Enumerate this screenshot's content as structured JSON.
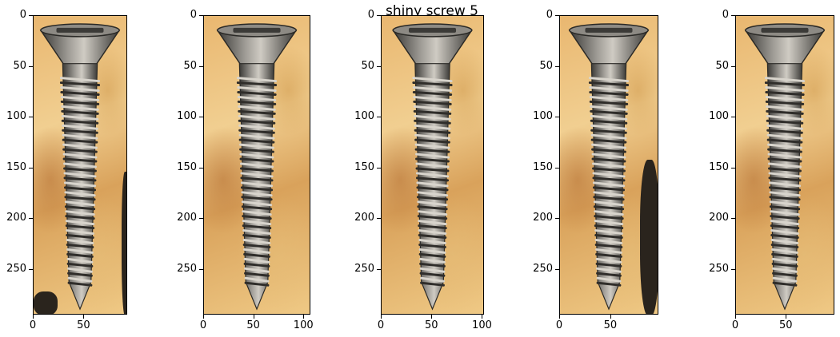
{
  "figure": {
    "title": "shiny screw 5"
  },
  "panels": [
    {
      "id": "panel-1",
      "x_ticks": [
        "0",
        "50"
      ],
      "y_ticks": [
        "0",
        "50",
        "100",
        "150",
        "200",
        "250"
      ]
    },
    {
      "id": "panel-2",
      "x_ticks": [
        "0",
        "50",
        "100"
      ],
      "y_ticks": [
        "0",
        "50",
        "100",
        "150",
        "200",
        "250"
      ]
    },
    {
      "id": "panel-3",
      "x_ticks": [
        "0",
        "50",
        "100"
      ],
      "y_ticks": [
        "0",
        "50",
        "100",
        "150",
        "200",
        "250"
      ]
    },
    {
      "id": "panel-4",
      "x_ticks": [
        "0",
        "50"
      ],
      "y_ticks": [
        "0",
        "50",
        "100",
        "150",
        "200",
        "250"
      ]
    },
    {
      "id": "panel-5",
      "x_ticks": [
        "0",
        "50"
      ],
      "y_ticks": [
        "0",
        "50",
        "100",
        "150",
        "200",
        "250"
      ]
    }
  ],
  "colors": {
    "wood": "#e9b770",
    "screw_metal": "#7a7772",
    "screw_shadow": "#3b3a37"
  }
}
